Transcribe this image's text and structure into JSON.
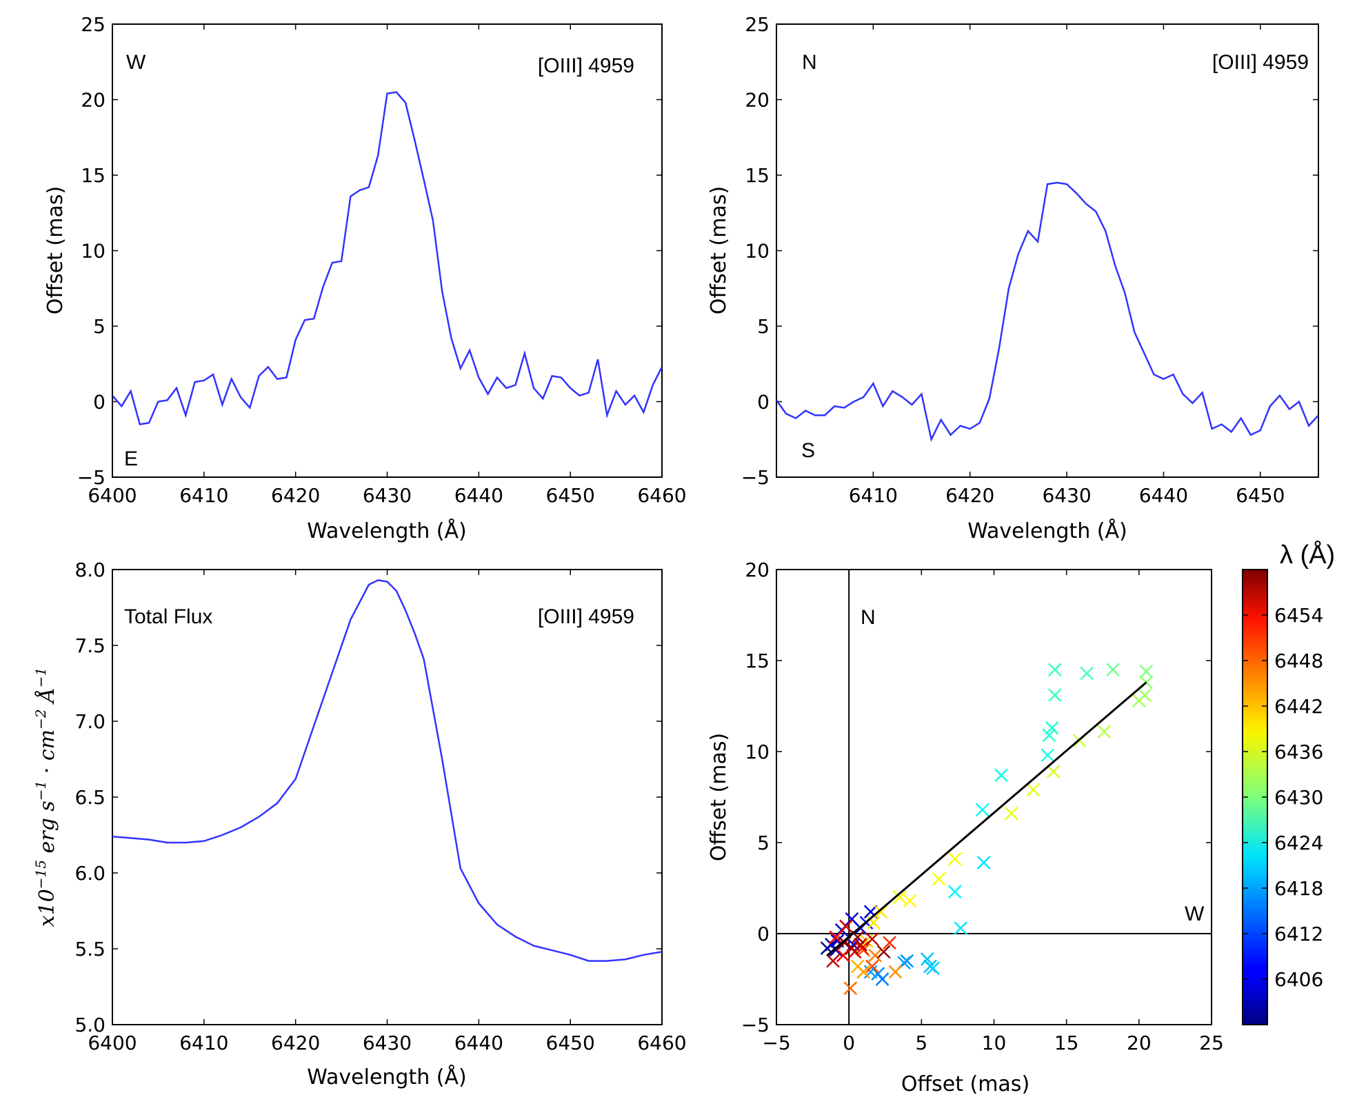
{
  "chart_data": [
    {
      "id": "p1",
      "type": "line",
      "xlabel": "Wavelength (Å)",
      "ylabel": "Offset (mas)",
      "xlim": [
        6400,
        6460
      ],
      "ylim": [
        -5,
        25
      ],
      "xticks": [
        6400,
        6410,
        6420,
        6430,
        6440,
        6450,
        6460
      ],
      "yticks": [
        -5,
        0,
        5,
        10,
        15,
        20,
        25
      ],
      "annotations": {
        "top_left": "W",
        "bottom_left": "E",
        "top_right": "[OIII] 4959"
      },
      "series": [
        {
          "name": "Offset",
          "color": "#3333ff",
          "x": [
            6400,
            6401,
            6402,
            6403,
            6404,
            6405,
            6406,
            6407,
            6408,
            6409,
            6410,
            6411,
            6412,
            6413,
            6414,
            6415,
            6416,
            6417,
            6418,
            6419,
            6420,
            6421,
            6422,
            6423,
            6424,
            6425,
            6426,
            6427,
            6428,
            6429,
            6430,
            6431,
            6432,
            6433,
            6434,
            6435,
            6436,
            6437,
            6438,
            6439,
            6440,
            6441,
            6442,
            6443,
            6444,
            6445,
            6446,
            6447,
            6448,
            6449,
            6450,
            6451,
            6452,
            6453,
            6454,
            6455,
            6456,
            6457,
            6458,
            6459,
            6460
          ],
          "y": [
            0.4,
            -0.3,
            0.7,
            -1.5,
            -1.4,
            0.0,
            0.1,
            0.9,
            -0.9,
            1.3,
            1.4,
            1.8,
            -0.2,
            1.5,
            0.3,
            -0.4,
            1.7,
            2.3,
            1.5,
            1.6,
            4.1,
            5.4,
            5.5,
            7.6,
            9.2,
            9.3,
            13.6,
            14.0,
            14.2,
            16.3,
            20.4,
            20.5,
            19.8,
            17.3,
            14.7,
            12.0,
            7.3,
            4.2,
            2.2,
            3.4,
            1.6,
            0.5,
            1.6,
            0.9,
            1.1,
            3.2,
            0.9,
            0.2,
            1.7,
            1.6,
            0.9,
            0.4,
            0.6,
            2.8,
            -0.9,
            0.7,
            -0.2,
            0.4,
            -0.7,
            1.1,
            2.3
          ]
        }
      ]
    },
    {
      "id": "p2",
      "type": "line",
      "xlabel": "Wavelength (Å)",
      "ylabel": "Offset (mas)",
      "xlim": [
        6400,
        6456
      ],
      "ylim": [
        -5,
        25
      ],
      "xticks": [
        6410,
        6420,
        6430,
        6440,
        6450
      ],
      "yticks": [
        -5,
        0,
        5,
        10,
        15,
        20,
        25
      ],
      "annotations": {
        "top_left": "N",
        "bottom_left": "S",
        "top_right": "[OIII] 4959"
      },
      "series": [
        {
          "name": "Offset",
          "color": "#3333ff",
          "x": [
            6400,
            6401,
            6402,
            6403,
            6404,
            6405,
            6406,
            6407,
            6408,
            6409,
            6410,
            6411,
            6412,
            6413,
            6414,
            6415,
            6416,
            6417,
            6418,
            6419,
            6420,
            6421,
            6422,
            6423,
            6424,
            6425,
            6426,
            6427,
            6428,
            6429,
            6430,
            6431,
            6432,
            6433,
            6434,
            6435,
            6436,
            6437,
            6438,
            6439,
            6440,
            6441,
            6442,
            6443,
            6444,
            6445,
            6446,
            6447,
            6448,
            6449,
            6450,
            6451,
            6452,
            6453,
            6454,
            6455,
            6456
          ],
          "y": [
            0.1,
            -0.8,
            -1.1,
            -0.6,
            -0.9,
            -0.9,
            -0.3,
            -0.4,
            0.0,
            0.3,
            1.2,
            -0.3,
            0.7,
            0.3,
            -0.2,
            0.5,
            -2.5,
            -1.2,
            -2.2,
            -1.6,
            -1.8,
            -1.4,
            0.2,
            3.5,
            7.5,
            9.8,
            11.3,
            10.6,
            14.4,
            14.5,
            14.4,
            13.8,
            13.1,
            12.6,
            11.3,
            9.0,
            7.2,
            4.6,
            3.2,
            1.8,
            1.5,
            1.8,
            0.5,
            -0.1,
            0.6,
            -1.8,
            -1.5,
            -2.0,
            -1.1,
            -2.2,
            -1.9,
            -0.3,
            0.4,
            -0.5,
            0.0,
            -1.6,
            -0.9
          ]
        }
      ]
    },
    {
      "id": "p3",
      "type": "line",
      "xlabel": "Wavelength (Å)",
      "ylabel": "x10^{-15} erg s^{-1} cm^{-2} Å^{-1}",
      "xlim": [
        6400,
        6460
      ],
      "ylim": [
        5.0,
        8.0
      ],
      "xticks": [
        6400,
        6410,
        6420,
        6430,
        6440,
        6450,
        6460
      ],
      "yticks": [
        "5.0",
        "5.5",
        "6.0",
        "6.5",
        "7.0",
        "7.5",
        "8.0"
      ],
      "annotations": {
        "top_left": "Total Flux",
        "top_right": "[OIII] 4959"
      },
      "series": [
        {
          "name": "Total Flux",
          "color": "#3333ff",
          "x": [
            6400,
            6402,
            6404,
            6406,
            6408,
            6410,
            6412,
            6414,
            6416,
            6418,
            6420,
            6422,
            6424,
            6426,
            6428,
            6429,
            6430,
            6431,
            6432,
            6433,
            6434,
            6436,
            6438,
            6440,
            6442,
            6444,
            6446,
            6448,
            6450,
            6452,
            6454,
            6456,
            6458,
            6460
          ],
          "y": [
            6.24,
            6.23,
            6.22,
            6.2,
            6.2,
            6.21,
            6.25,
            6.3,
            6.37,
            6.46,
            6.62,
            6.97,
            7.32,
            7.67,
            7.9,
            7.93,
            7.92,
            7.86,
            7.73,
            7.58,
            7.41,
            6.75,
            6.03,
            5.8,
            5.66,
            5.58,
            5.52,
            5.49,
            5.46,
            5.42,
            5.42,
            5.43,
            5.46,
            5.48
          ]
        }
      ]
    },
    {
      "id": "p4",
      "type": "scatter",
      "xlabel": "Offset (mas)",
      "ylabel": "Offset (mas)",
      "xlim": [
        -5,
        25
      ],
      "ylim": [
        -5,
        20
      ],
      "xticks": [
        -5,
        0,
        5,
        10,
        15,
        20,
        25
      ],
      "yticks": [
        -5,
        0,
        5,
        10,
        15,
        20
      ],
      "annotations": {
        "north": "N",
        "west": "W"
      },
      "fit_line": {
        "x": [
          -1.5,
          20.5
        ],
        "y": [
          -1.2,
          13.8
        ],
        "color": "#000000"
      },
      "colorbar": {
        "title": "λ (Å)",
        "range": [
          6400,
          6460
        ],
        "ticks": [
          6406,
          6412,
          6418,
          6424,
          6430,
          6436,
          6442,
          6448,
          6454
        ]
      },
      "points": [
        {
          "x": -1.5,
          "y": -0.8,
          "w": 6401
        },
        {
          "x": -1.2,
          "y": -0.6,
          "w": 6402
        },
        {
          "x": -0.9,
          "y": -0.9,
          "w": 6403
        },
        {
          "x": -0.5,
          "y": 0.2,
          "w": 6404
        },
        {
          "x": 0.2,
          "y": 0.8,
          "w": 6405
        },
        {
          "x": 1.5,
          "y": 1.2,
          "w": 6406
        },
        {
          "x": 0.8,
          "y": 0.3,
          "w": 6407
        },
        {
          "x": -0.8,
          "y": -0.4,
          "w": 6405
        },
        {
          "x": 0.3,
          "y": -0.6,
          "w": 6408
        },
        {
          "x": 1.2,
          "y": 0.6,
          "w": 6409
        },
        {
          "x": 2.0,
          "y": -2.2,
          "w": 6416
        },
        {
          "x": 2.3,
          "y": -2.5,
          "w": 6415
        },
        {
          "x": 1.5,
          "y": -2.1,
          "w": 6417
        },
        {
          "x": 4.0,
          "y": -1.5,
          "w": 6416
        },
        {
          "x": 3.8,
          "y": -1.6,
          "w": 6417
        },
        {
          "x": 5.4,
          "y": -1.4,
          "w": 6419
        },
        {
          "x": 5.6,
          "y": -1.8,
          "w": 6419
        },
        {
          "x": 5.8,
          "y": -1.9,
          "w": 6420
        },
        {
          "x": 7.7,
          "y": 0.3,
          "w": 6421
        },
        {
          "x": 7.3,
          "y": 2.3,
          "w": 6422
        },
        {
          "x": 9.3,
          "y": 3.9,
          "w": 6421
        },
        {
          "x": 9.2,
          "y": 6.8,
          "w": 6423
        },
        {
          "x": 10.5,
          "y": 8.7,
          "w": 6424
        },
        {
          "x": 13.7,
          "y": 9.8,
          "w": 6424
        },
        {
          "x": 13.8,
          "y": 10.9,
          "w": 6425
        },
        {
          "x": 14.0,
          "y": 11.3,
          "w": 6425
        },
        {
          "x": 14.2,
          "y": 13.1,
          "w": 6426
        },
        {
          "x": 14.2,
          "y": 14.5,
          "w": 6426
        },
        {
          "x": 16.4,
          "y": 14.3,
          "w": 6427
        },
        {
          "x": 18.2,
          "y": 14.5,
          "w": 6429
        },
        {
          "x": 20.5,
          "y": 14.4,
          "w": 6430
        },
        {
          "x": 20.5,
          "y": 13.8,
          "w": 6431
        },
        {
          "x": 20.4,
          "y": 13.1,
          "w": 6432
        },
        {
          "x": 20.0,
          "y": 12.8,
          "w": 6432
        },
        {
          "x": 17.6,
          "y": 11.1,
          "w": 6433
        },
        {
          "x": 15.9,
          "y": 10.6,
          "w": 6434
        },
        {
          "x": 14.1,
          "y": 8.9,
          "w": 6435
        },
        {
          "x": 12.7,
          "y": 7.9,
          "w": 6436
        },
        {
          "x": 11.2,
          "y": 6.6,
          "w": 6436
        },
        {
          "x": 7.3,
          "y": 4.1,
          "w": 6437
        },
        {
          "x": 6.2,
          "y": 3.0,
          "w": 6437
        },
        {
          "x": 4.2,
          "y": 1.8,
          "w": 6438
        },
        {
          "x": 3.5,
          "y": 2.0,
          "w": 6438
        },
        {
          "x": 2.2,
          "y": 1.2,
          "w": 6439
        },
        {
          "x": 1.7,
          "y": 0.6,
          "w": 6439
        },
        {
          "x": 1.2,
          "y": -0.4,
          "w": 6440
        },
        {
          "x": 0.6,
          "y": -1.8,
          "w": 6442
        },
        {
          "x": 1.0,
          "y": -2.1,
          "w": 6443
        },
        {
          "x": 3.2,
          "y": -2.1,
          "w": 6444
        },
        {
          "x": 1.8,
          "y": -1.2,
          "w": 6445
        },
        {
          "x": 0.1,
          "y": -3.0,
          "w": 6446
        },
        {
          "x": 1.0,
          "y": -0.9,
          "w": 6447
        },
        {
          "x": 1.6,
          "y": -1.8,
          "w": 6448
        },
        {
          "x": 2.8,
          "y": -0.5,
          "w": 6450
        },
        {
          "x": 0.9,
          "y": -0.8,
          "w": 6451
        },
        {
          "x": -0.9,
          "y": -0.2,
          "w": 6452
        },
        {
          "x": -0.4,
          "y": -1.2,
          "w": 6453
        },
        {
          "x": 0.4,
          "y": -1.0,
          "w": 6454
        },
        {
          "x": -0.2,
          "y": 0.4,
          "w": 6455
        },
        {
          "x": 1.6,
          "y": -0.3,
          "w": 6456
        },
        {
          "x": 0.8,
          "y": -0.6,
          "w": 6457
        },
        {
          "x": -1.1,
          "y": -1.5,
          "w": 6456
        },
        {
          "x": 0.2,
          "y": -0.8,
          "w": 6458
        },
        {
          "x": 2.4,
          "y": -1.0,
          "w": 6459
        },
        {
          "x": 0.6,
          "y": -0.2,
          "w": 6459
        },
        {
          "x": -0.3,
          "y": -0.5,
          "w": 6460
        }
      ]
    }
  ]
}
